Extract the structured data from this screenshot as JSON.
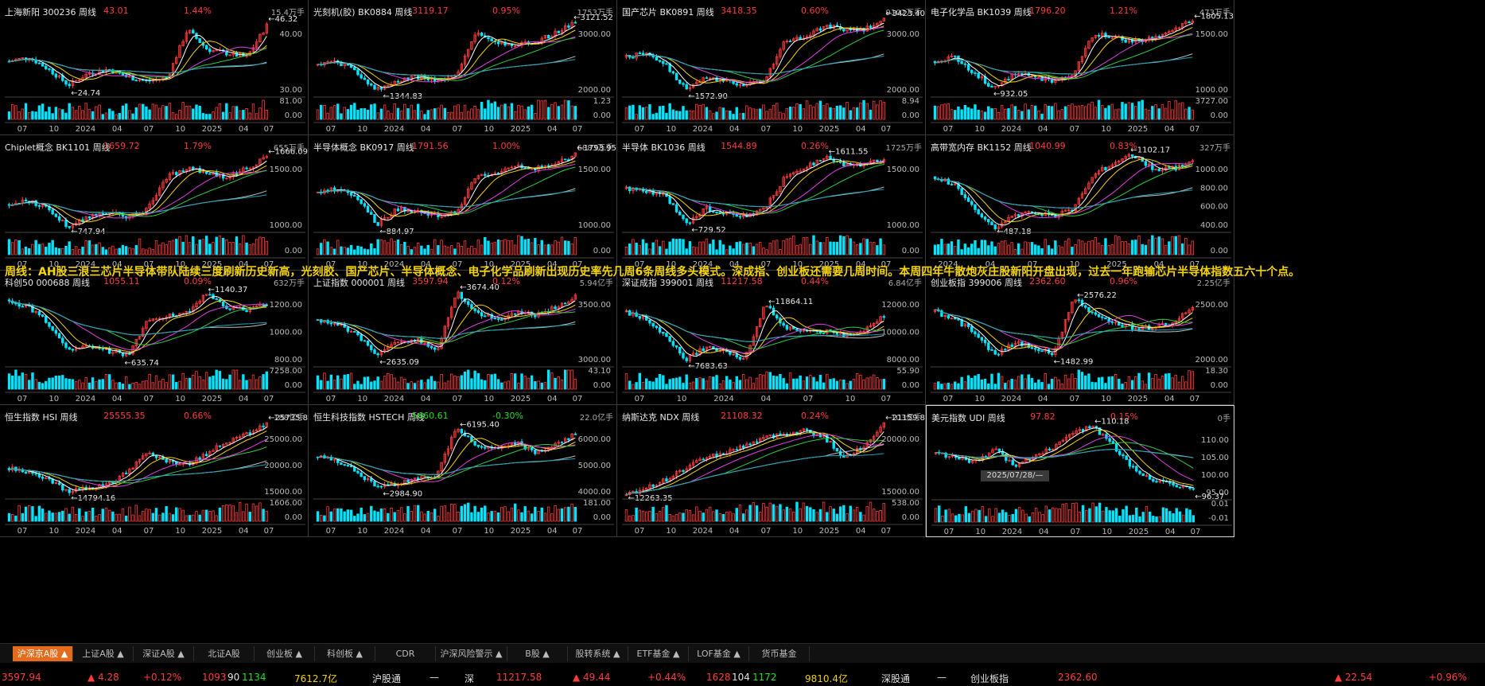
{
  "panels": [
    {
      "name": "上海新阳",
      "code": "300236",
      "period": "周线",
      "price": "43.01",
      "pct": "1.44%",
      "vol": "15.4万手",
      "up": true,
      "yt": [
        "40.00",
        "30.00"
      ],
      "vt": [
        "81.00",
        "0.00"
      ],
      "hi": "46.32",
      "lo": "24.74",
      "xt": [
        "07",
        "10",
        "2024",
        "04",
        "07",
        "10",
        "2025",
        "04",
        "07"
      ]
    },
    {
      "name": "光刻机(胶)",
      "code": "BK0884",
      "period": "周线",
      "price": "3119.17",
      "pct": "0.95%",
      "vol": "1753万手",
      "up": true,
      "yt": [
        "3000.00",
        "2000.00"
      ],
      "vt": [
        "1.23",
        "0.00"
      ],
      "hi": "3121.52",
      "lo": "1344.83",
      "xt": [
        "07",
        "10",
        "2024",
        "04",
        "07",
        "10",
        "2025",
        "04",
        "07"
      ]
    },
    {
      "name": "国产芯片",
      "code": "BK0891",
      "period": "周线",
      "price": "3418.35",
      "pct": "0.60%",
      "vol": "9102万手",
      "up": true,
      "yt": [
        "3000.00",
        "2000.00"
      ],
      "vt": [
        "8.94",
        "0.00"
      ],
      "hi": "3423.40",
      "lo": "1572.90",
      "xt": [
        "07",
        "10",
        "2024",
        "04",
        "07",
        "10",
        "2025",
        "04",
        "07"
      ]
    },
    {
      "name": "电子化学品",
      "code": "BK1039",
      "period": "周线",
      "price": "1796.20",
      "pct": "1.21%",
      "vol": "473万手",
      "up": true,
      "yt": [
        "1500.00",
        "1000.00"
      ],
      "vt": [
        "3727.00",
        "0.00"
      ],
      "hi": "1805.13",
      "lo": "932.05",
      "xt": [
        "07",
        "10",
        "2024",
        "04",
        "07",
        "10",
        "2025",
        "04",
        "07"
      ]
    },
    {
      "name": "Chiplet概念",
      "code": "BK1101",
      "period": "周线",
      "price": "1659.72",
      "pct": "1.79%",
      "vol": "655万手",
      "up": true,
      "yt": [
        "1500.00",
        "1000.00"
      ],
      "vt": [
        "0.00"
      ],
      "hi": "1666.09",
      "lo": "747.94",
      "xt": [
        "07",
        "10",
        "2024",
        "04",
        "07",
        "10",
        "2025",
        "04",
        "07"
      ]
    },
    {
      "name": "半导体概念",
      "code": "BK0917",
      "period": "周线",
      "price": "1791.56",
      "pct": "1.00%",
      "vol": "6883万手",
      "up": true,
      "yt": [
        "1500.00",
        "1000.00"
      ],
      "vt": [
        "0.00"
      ],
      "hi": "1793.95",
      "lo": "884.97",
      "xt": [
        "07",
        "10",
        "2024",
        "04",
        "07",
        "10",
        "2025",
        "04",
        "07"
      ]
    },
    {
      "name": "半导体",
      "code": "BK1036",
      "period": "周线",
      "price": "1544.89",
      "pct": "0.26%",
      "vol": "1725万手",
      "up": true,
      "yt": [
        "1500.00",
        "1000.00"
      ],
      "vt": [
        "0.00"
      ],
      "hi": "1611.55",
      "lo": "729.52",
      "xt": [
        "07",
        "10",
        "2024",
        "04",
        "07",
        "10",
        "2025",
        "04",
        "07"
      ]
    },
    {
      "name": "高带宽内存",
      "code": "BK1152",
      "period": "周线",
      "price": "1040.99",
      "pct": "0.83%",
      "vol": "327万手",
      "up": true,
      "yt": [
        "1000.00",
        "800.00",
        "600.00",
        "400.00"
      ],
      "vt": [
        "0.00"
      ],
      "hi": "1102.17",
      "lo": "487.18",
      "xt": [
        "2024",
        "04",
        "07",
        "10",
        "2025",
        "04",
        "07"
      ]
    },
    {
      "name": "科创50",
      "code": "000688",
      "period": "周线",
      "price": "1055.11",
      "pct": "0.09%",
      "vol": "632万手",
      "up": true,
      "yt": [
        "1200.00",
        "1000.00",
        "800.00"
      ],
      "vt": [
        "7258.00",
        "0.00"
      ],
      "hi": "1140.37",
      "lo": "635.74",
      "xt": [
        "07",
        "10",
        "2024",
        "04",
        "07",
        "10",
        "2025",
        "04",
        "07"
      ]
    },
    {
      "name": "上证指数",
      "code": "000001",
      "period": "周线",
      "price": "3597.94",
      "pct": "0.12%",
      "vol": "5.94亿手",
      "up": true,
      "yt": [
        "3500.00",
        "3000.00"
      ],
      "vt": [
        "43.10",
        "0.00"
      ],
      "hi": "3674.40",
      "lo": "2635.09",
      "xt": [
        "07",
        "10",
        "2024",
        "04",
        "07",
        "10",
        "2025",
        "04",
        "07"
      ]
    },
    {
      "name": "深证成指",
      "code": "399001",
      "period": "周线",
      "price": "11217.58",
      "pct": "0.44%",
      "vol": "6.84亿手",
      "up": true,
      "yt": [
        "12000.00",
        "10000.00",
        "8000.00"
      ],
      "vt": [
        "55.90",
        "0.00"
      ],
      "hi": "11864.11",
      "lo": "7683.63",
      "xt": [
        "07",
        "10",
        "2024",
        "04",
        "07",
        "10",
        "07"
      ]
    },
    {
      "name": "创业板指",
      "code": "399006",
      "period": "周线",
      "price": "2362.60",
      "pct": "0.96%",
      "vol": "2.25亿手",
      "up": true,
      "yt": [
        "2500.00",
        "2000.00"
      ],
      "vt": [
        "18.30",
        "0.00"
      ],
      "hi": "2576.22",
      "lo": "1482.99",
      "xt": [
        "07",
        "10",
        "2024",
        "04",
        "07",
        "10",
        "2025",
        "04",
        "07"
      ]
    },
    {
      "name": "恒生指数",
      "code": "HSI",
      "period": "周线",
      "price": "25555.35",
      "pct": "0.66%",
      "vol": "188亿手",
      "up": true,
      "yt": [
        "25000.00",
        "20000.00",
        "15000.00"
      ],
      "vt": [
        "1606.00",
        "0.00"
      ],
      "hi": "25735.89",
      "lo": "14794.16",
      "xt": [
        "07",
        "10",
        "2024",
        "04",
        "07",
        "10",
        "2025",
        "04",
        "07"
      ]
    },
    {
      "name": "恒生科技指数",
      "code": "HSTECH",
      "period": "周线",
      "price": "5660.61",
      "pct": "-0.30%",
      "vol": "22.0亿手",
      "up": false,
      "yt": [
        "6000.00",
        "5000.00",
        "4000.00"
      ],
      "vt": [
        "181.00",
        "0.00"
      ],
      "hi": "6195.40",
      "lo": "2984.90",
      "xt": [
        "07",
        "10",
        "2024",
        "04",
        "07",
        "10",
        "2025",
        "04",
        "07"
      ]
    },
    {
      "name": "纳斯达克",
      "code": "NDX",
      "period": "周线",
      "price": "21108.32",
      "pct": "0.24%",
      "vol": "103亿手",
      "up": true,
      "yt": [
        "20000.00",
        "15000.00"
      ],
      "vt": [
        "538.00",
        "0.00"
      ],
      "hi": "21159.80",
      "lo": "12263.35",
      "xt": [
        "07",
        "10",
        "2024",
        "04",
        "07",
        "10",
        "2025",
        "04",
        "07"
      ]
    },
    {
      "name": "美元指数",
      "code": "UDI",
      "period": "周线",
      "price": "97.82",
      "pct": "0.15%",
      "vol": "0手",
      "up": true,
      "yt": [
        "110.00",
        "105.00",
        "100.00",
        "95.00"
      ],
      "vt": [
        "0.01",
        "-0.01"
      ],
      "hi": "110.18",
      "lo": "96.37",
      "xt": [
        "07",
        "10",
        "2024",
        "04",
        "07",
        "10",
        "2025",
        "04",
        "07"
      ]
    }
  ],
  "note": "周线：AH股三浪三芯片半导体带队陆续三度刷新历史新高，光刻胶、国产芯片、半导体概念、电子化学品刷新出现历史率先几周6条周线多头模式。深成指、创业板还需要几周时间。本周四年牛散炮灰庄股新阳开盘出现，过去一年跑输芯片半导体指数五六十个点。",
  "date_badge": "2025/07/28/—",
  "tabs": [
    {
      "label": "沪深京A股 ▲",
      "active": true
    },
    {
      "label": "上证A股 ▲"
    },
    {
      "label": "深证A股 ▲"
    },
    {
      "label": "北证A股"
    },
    {
      "label": "创业板 ▲"
    },
    {
      "label": "科创板 ▲"
    },
    {
      "label": "CDR"
    },
    {
      "label": "沪深风险警示 ▲"
    },
    {
      "label": "B股 ▲"
    },
    {
      "label": "股转系统 ▲"
    },
    {
      "label": "ETF基金 ▲"
    },
    {
      "label": "LOF基金 ▲"
    },
    {
      "label": "货币基金"
    }
  ],
  "status": {
    "sh_price": "3597.94",
    "sh_chg": "▲ 4.28",
    "sh_pct": "+0.12%",
    "sh_up": "1093",
    "sh_flat": "90",
    "sh_down": "1134",
    "sh_amt": "7612.7亿",
    "hgt_label": "沪股通",
    "hgt_val": "—",
    "sz_label": "深",
    "sz_price": "11217.58",
    "sz_chg": "▲ 49.44",
    "sz_pct": "+0.44%",
    "sz_up": "1628",
    "sz_flat": "104",
    "sz_down": "1172",
    "sz_amt": "9810.4亿",
    "sgt_label": "深股通",
    "sgt_val": "—",
    "cy_label": "创业板指",
    "cy_price": "2362.60",
    "cy_chg": "▲ 22.54",
    "cy_pct": "+0.96%"
  },
  "colors": {
    "up": "#ff3b3b",
    "down": "#1ee01e",
    "cyan": "#00e5ff",
    "yellow": "#f5d400",
    "white": "#ffffff",
    "magenta": "#e040e0",
    "green": "#2ecc40",
    "teal": "#1fa3b8",
    "accent": "#e36b1b"
  }
}
